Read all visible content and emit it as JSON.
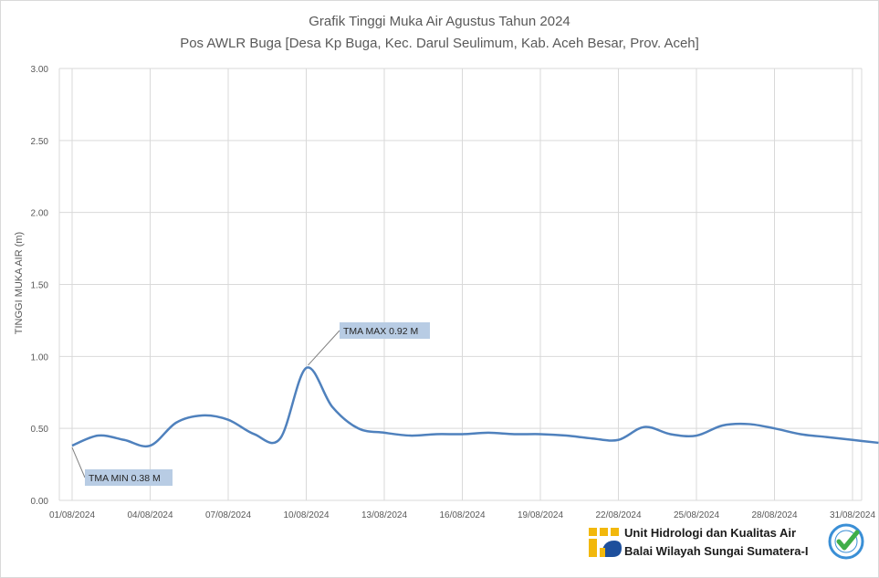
{
  "chart_data": {
    "type": "line",
    "title": "Grafik Tinggi Muka Air Agustus Tahun 2024",
    "subtitle": "Pos AWLR Buga [Desa Kp Buga, Kec. Darul Seulimum, Kab. Aceh Besar, Prov. Aceh]",
    "xlabel": "",
    "ylabel": "TINGGI MUKA AIR (m)",
    "ylim": [
      0,
      3
    ],
    "yticks": [
      "0.00",
      "0.50",
      "1.00",
      "1.50",
      "2.00",
      "2.50",
      "3.00"
    ],
    "xticks": [
      "01/08/2024",
      "04/08/2024",
      "07/08/2024",
      "10/08/2024",
      "13/08/2024",
      "16/08/2024",
      "19/08/2024",
      "22/08/2024",
      "25/08/2024",
      "28/08/2024",
      "31/08/2024"
    ],
    "grid": true,
    "series": [
      {
        "color": "#4f81bd",
        "x": [
          "01/08/2024",
          "02/08/2024",
          "03/08/2024",
          "04/08/2024",
          "05/08/2024",
          "06/08/2024",
          "07/08/2024",
          "08/08/2024",
          "09/08/2024",
          "10/08/2024",
          "11/08/2024",
          "12/08/2024",
          "13/08/2024",
          "14/08/2024",
          "15/08/2024",
          "16/08/2024",
          "17/08/2024",
          "18/08/2024",
          "19/08/2024",
          "20/08/2024",
          "21/08/2024",
          "22/08/2024",
          "23/08/2024",
          "24/08/2024",
          "25/08/2024",
          "26/08/2024",
          "27/08/2024",
          "28/08/2024",
          "29/08/2024",
          "30/08/2024",
          "31/08/2024",
          "01/09/2024"
        ],
        "values": [
          0.38,
          0.45,
          0.42,
          0.38,
          0.54,
          0.59,
          0.56,
          0.46,
          0.43,
          0.92,
          0.65,
          0.5,
          0.47,
          0.45,
          0.46,
          0.46,
          0.47,
          0.46,
          0.46,
          0.45,
          0.43,
          0.42,
          0.51,
          0.46,
          0.45,
          0.52,
          0.53,
          0.5,
          0.46,
          0.44,
          0.42,
          0.4
        ]
      }
    ],
    "annotations": [
      {
        "text": "TMA MAX  0.92  M",
        "x": "10/08/2024",
        "y": 0.92
      },
      {
        "text": "TMA MIN  0.38  M",
        "x": "01/08/2024",
        "y": 0.38
      }
    ]
  },
  "footer": {
    "org_line1": "Unit Hidrologi dan Kualitas Air",
    "org_line2": "Balai Wilayah Sungai Sumatera-I",
    "logo_icon": "pu-logo-icon",
    "badge_icon": "iso-certified-check-icon",
    "logo_color": "#f2b80c",
    "badge_color": "#3a8fd6"
  }
}
